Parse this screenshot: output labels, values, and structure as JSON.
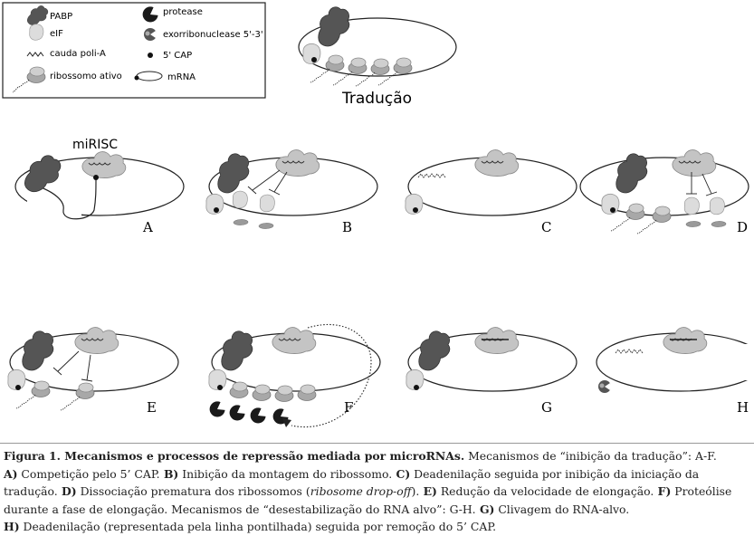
{
  "legend": {
    "pabp": "PABP",
    "eif": "eIF",
    "polya": "cauda poli-A",
    "ribosome": "ribossomo ativo",
    "protease": "protease",
    "exo": "exorribonuclease 5'-3'",
    "cap": "5' CAP",
    "mrna": "mRNA"
  },
  "top_title": "Tradução",
  "mirisc_label": "miRISC",
  "panels": [
    "A",
    "B",
    "C",
    "D",
    "E",
    "F",
    "G",
    "H"
  ],
  "caption": {
    "fig_label": "Figura 1. Mecanismos e processos de repressão mediada por microRNAs.",
    "intro": " Mecanismos de “inibição da tradução”: A-F.",
    "a_key": "A)",
    "a_text": " Competição pelo 5’ CAP.",
    "b_key": " B)",
    "b_text": " Inibição da montagem do ribossomo.",
    "c_key": " C)",
    "c_text": " Deadenilação seguida por inibição da iniciação da tradução.",
    "d_key": " D)",
    "d_text": " Dissociação prematura dos ribossomos (",
    "d_italic": "ribosome drop-off",
    "d_end": ").",
    "e_key": " E)",
    "e_text": " Redução da velocidade de elongação.",
    "f_key": " F)",
    "f_text": " Proteólise durante a fase de elongação. Mecanismos de “desestabilização do RNA alvo”: G-H.",
    "g_key": " G)",
    "g_text": " Clivagem do RNA-alvo.",
    "h_key": "H)",
    "h_text": " Deadenilação (representada pela linha pontilhada) seguida por remoção do 5’ CAP."
  },
  "colors": {
    "pabp": "#555555",
    "eif": "#d9d9d9",
    "ribosome": "#b5b5b5",
    "mirisc": "#c2c2c2",
    "protease": "#1a1a1a",
    "line": "#222222"
  }
}
